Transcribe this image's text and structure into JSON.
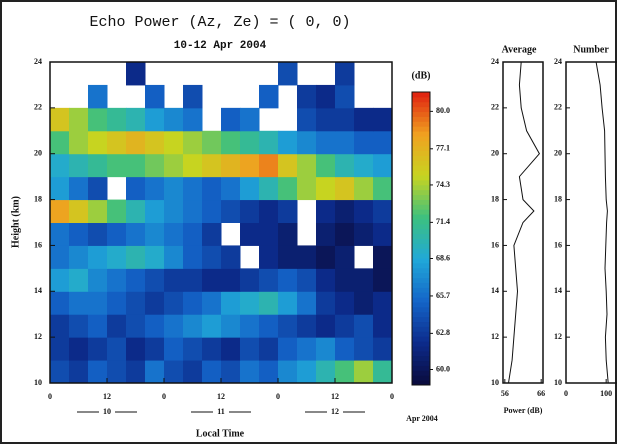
{
  "chart_data": [
    {
      "type": "heatmap",
      "title": "Echo Power (Az, Ze) = (  0, 0)",
      "subtitle": "10-12 Apr 2004",
      "xlabel": "Local Time",
      "ylabel": "Height (km)",
      "xlim": [
        0,
        72
      ],
      "ylim": [
        10,
        24
      ],
      "xticks": [
        0,
        12,
        {
          "value": 24,
          "label": "0"
        },
        {
          "value": 36,
          "label": "12"
        },
        {
          "value": 48,
          "label": "0"
        },
        {
          "value": 60,
          "label": "12"
        },
        {
          "value": 72,
          "label": "0"
        }
      ],
      "yticks": [
        10,
        12,
        14,
        16,
        18,
        20,
        22,
        24
      ],
      "day_ticks": [
        {
          "value": 12,
          "label": "10"
        },
        {
          "value": 36,
          "label": "11"
        },
        {
          "value": 60,
          "label": "12"
        }
      ],
      "date_label": "Apr 2004",
      "z": [
        [
          64,
          63,
          65,
          64,
          63,
          66,
          64,
          63,
          65,
          64,
          66,
          65,
          67,
          68,
          70,
          72,
          74,
          71
        ],
        [
          63,
          62,
          63,
          64,
          62,
          63,
          65,
          64,
          63,
          62,
          64,
          63,
          65,
          66,
          67,
          65,
          64,
          63
        ],
        [
          63,
          64,
          65,
          63,
          64,
          65,
          66,
          67,
          68,
          67,
          66,
          65,
          64,
          63,
          62,
          63,
          64,
          62
        ],
        [
          65,
          66,
          66,
          65,
          64,
          63,
          64,
          65,
          66,
          68,
          69,
          70,
          68,
          66,
          63,
          62,
          61,
          62
        ],
        [
          68,
          69,
          67,
          66,
          65,
          64,
          63,
          63,
          62,
          62,
          63,
          64,
          65,
          64,
          62,
          61,
          61,
          60
        ],
        [
          66,
          67,
          68,
          69,
          70,
          69,
          67,
          65,
          64,
          63,
          null,
          62,
          61,
          61,
          60,
          61,
          null,
          60
        ],
        [
          66,
          65,
          64,
          65,
          66,
          67,
          66,
          65,
          63,
          null,
          62,
          62,
          61,
          null,
          61,
          60,
          61,
          62
        ],
        [
          78,
          76,
          74,
          72,
          70,
          68,
          67,
          66,
          65,
          64,
          63,
          62,
          63,
          null,
          62,
          61,
          62,
          63
        ],
        [
          68,
          66,
          64,
          null,
          65,
          66,
          67,
          66,
          65,
          66,
          68,
          70,
          72,
          74,
          75,
          76,
          74,
          72
        ],
        [
          69,
          70,
          71,
          72,
          72,
          73,
          74,
          75,
          76,
          77,
          78,
          79,
          76,
          74,
          72,
          70,
          69,
          68
        ],
        [
          72,
          74,
          75,
          76,
          77,
          76,
          75,
          74,
          73,
          72,
          71,
          70,
          68,
          67,
          66,
          66,
          65,
          65
        ],
        [
          76,
          74,
          72,
          71,
          70,
          68,
          67,
          66,
          null,
          65,
          66,
          null,
          null,
          64,
          63,
          63,
          62,
          62
        ],
        [
          null,
          null,
          66,
          null,
          null,
          65,
          null,
          64,
          null,
          null,
          null,
          65,
          null,
          63,
          62,
          64,
          null,
          null
        ],
        [
          null,
          null,
          null,
          null,
          62,
          null,
          null,
          null,
          null,
          null,
          null,
          null,
          64,
          null,
          null,
          63,
          null,
          null
        ]
      ],
      "colorbar": {
        "label": "(dB)",
        "zlim": [
          58.8,
          81.5
        ],
        "ticks": [
          {
            "value": 60,
            "label": "60.0"
          },
          62.8,
          65.7,
          68.6,
          71.4,
          74.3,
          77.1,
          {
            "value": 80,
            "label": "80.0"
          }
        ],
        "colors": [
          "#0a0a3a",
          "#0c2a8a",
          "#1464c8",
          "#20a8d8",
          "#3cc080",
          "#c8d420",
          "#f0a020",
          "#e02010"
        ]
      }
    },
    {
      "type": "profile",
      "title": "Average",
      "xlabel": "Power (dB)",
      "xlim": [
        55.5,
        66.5
      ],
      "xticks": [
        56,
        66
      ],
      "ylim": [
        10,
        24
      ],
      "yticks": [
        10,
        12,
        14,
        16,
        18,
        20,
        22,
        24
      ],
      "heights": [
        10,
        11,
        12,
        13,
        14,
        15,
        16,
        17,
        17.5,
        18,
        19,
        20,
        21,
        22,
        23,
        24
      ],
      "values": [
        57,
        58,
        58.5,
        59,
        59.5,
        59,
        58.5,
        61,
        64,
        61,
        60,
        65.5,
        62,
        60.5,
        60,
        60.5
      ],
      "color": "#111111"
    },
    {
      "type": "profile",
      "title": "Number",
      "xlim": [
        0,
        127
      ],
      "xticks": [
        0,
        100
      ],
      "ylim": [
        10,
        24
      ],
      "yticks": [
        10,
        12,
        14,
        16,
        18,
        20,
        22,
        24
      ],
      "heights": [
        10,
        11,
        12,
        13,
        14,
        15,
        16,
        17,
        17.5,
        18,
        19,
        20,
        21,
        22,
        23,
        24
      ],
      "values": [
        105,
        100,
        98,
        102,
        100,
        97,
        99,
        101,
        103,
        100,
        98,
        97,
        96,
        90,
        85,
        75
      ],
      "color": "#111111"
    }
  ]
}
